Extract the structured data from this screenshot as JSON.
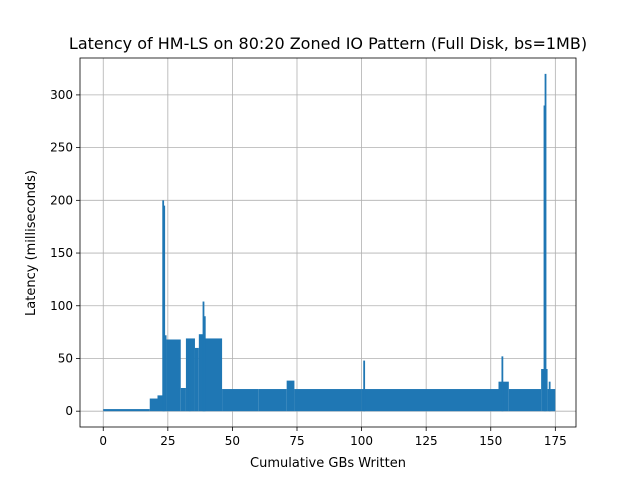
{
  "chart_data": {
    "type": "line",
    "title": "Latency of HM-LS on 80:20 Zoned IO Pattern (Full Disk, bs=1MB)",
    "xlabel": "Cumulative GBs Written",
    "ylabel": "Latency (milliseconds)",
    "xlim": [
      -9,
      183
    ],
    "ylim": [
      -15,
      335
    ],
    "xticks": [
      0,
      25,
      50,
      75,
      100,
      125,
      150,
      175
    ],
    "yticks": [
      0,
      50,
      100,
      150,
      200,
      250,
      300
    ],
    "xtick_labels": [
      "0",
      "25",
      "50",
      "75",
      "100",
      "125",
      "150",
      "175"
    ],
    "ytick_labels": [
      "0",
      "50",
      "100",
      "150",
      "200",
      "250",
      "300"
    ],
    "grid": true,
    "colors": {
      "series": "#1f77b4"
    },
    "series": [
      {
        "name": "",
        "bands": [
          {
            "x": [
              0,
              18
            ],
            "low": 0,
            "high": 2
          },
          {
            "x": [
              18,
              21
            ],
            "low": 0,
            "high": 12
          },
          {
            "x": [
              21,
              23
            ],
            "low": 0,
            "high": 15
          },
          {
            "x": [
              23,
              24.5
            ],
            "low": 0,
            "high": 72
          },
          {
            "x": [
              24.5,
              30
            ],
            "low": 0,
            "high": 68
          },
          {
            "x": [
              30,
              32
            ],
            "low": 0,
            "high": 22
          },
          {
            "x": [
              32,
              35.5
            ],
            "low": 0,
            "high": 69
          },
          {
            "x": [
              35.5,
              37
            ],
            "low": 0,
            "high": 60
          },
          {
            "x": [
              37,
              39
            ],
            "low": 0,
            "high": 73
          },
          {
            "x": [
              39,
              46
            ],
            "low": 0,
            "high": 69
          },
          {
            "x": [
              46,
              60
            ],
            "low": 0,
            "high": 21
          },
          {
            "x": [
              60,
              71
            ],
            "low": 0,
            "high": 21
          },
          {
            "x": [
              71,
              74
            ],
            "low": 0,
            "high": 29
          },
          {
            "x": [
              74,
              100
            ],
            "low": 0,
            "high": 21
          },
          {
            "x": [
              100,
              153
            ],
            "low": 0,
            "high": 21
          },
          {
            "x": [
              153,
              157
            ],
            "low": 0,
            "high": 28
          },
          {
            "x": [
              157,
              169.5
            ],
            "low": 0,
            "high": 21
          },
          {
            "x": [
              169.5,
              172
            ],
            "low": 0,
            "high": 40
          },
          {
            "x": [
              172,
              175
            ],
            "low": 0,
            "high": 21
          }
        ],
        "spikes": [
          {
            "x": 23.2,
            "y": 200
          },
          {
            "x": 23.6,
            "y": 195
          },
          {
            "x": 33.5,
            "y": 68
          },
          {
            "x": 38.8,
            "y": 104
          },
          {
            "x": 39.3,
            "y": 90
          },
          {
            "x": 101,
            "y": 48
          },
          {
            "x": 154.5,
            "y": 52
          },
          {
            "x": 170.8,
            "y": 290
          },
          {
            "x": 171.2,
            "y": 320
          },
          {
            "x": 172.8,
            "y": 28
          }
        ]
      }
    ]
  }
}
